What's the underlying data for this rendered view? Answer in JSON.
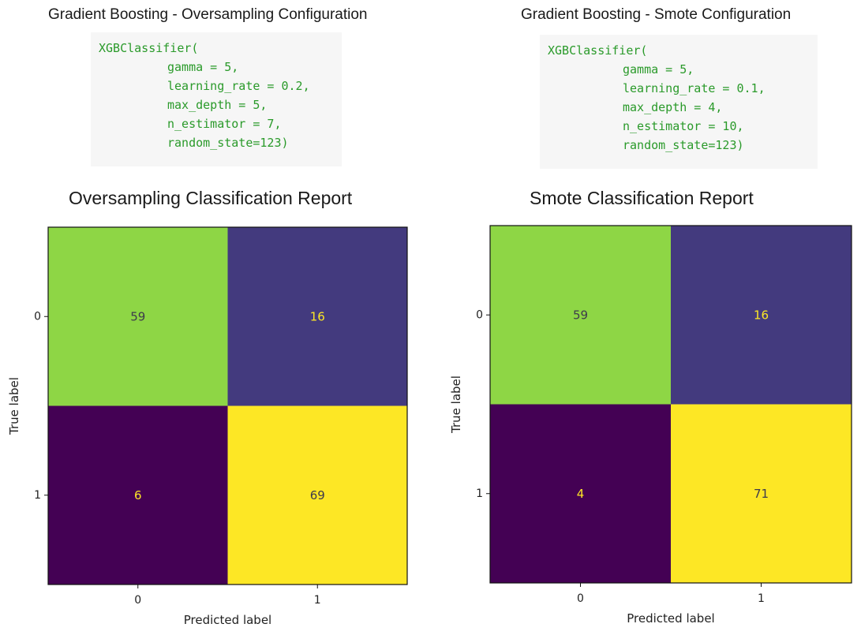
{
  "colors": {
    "tl": "#8ed645",
    "tr": "#433a7e",
    "bl": "#440154",
    "br": "#fde725",
    "text_on_dark": "#fde725",
    "text_on_light": "#3d3a4c",
    "code_green": "#2a9a2a"
  },
  "panels": [
    {
      "config_title": "Gradient Boosting - Oversampling Configuration",
      "code_lines": [
        "XGBClassifier(",
        "gamma = 5,",
        "learning_rate = 0.2,",
        "max_depth = 5,",
        "n_estimator = 7,",
        "random_state=123)"
      ],
      "report_title": "Oversampling Classification Report"
    },
    {
      "config_title": "Gradient Boosting - Smote Configuration",
      "code_lines": [
        "XGBClassifier(",
        "gamma = 5,",
        "learning_rate = 0.1,",
        "max_depth = 4,",
        "n_estimator = 10,",
        "random_state=123)"
      ],
      "report_title": "Smote Classification Report"
    }
  ],
  "chart_data": [
    {
      "type": "heatmap",
      "title": "Oversampling Classification Report",
      "xlabel": "Predicted label",
      "ylabel": "True label",
      "x_categories": [
        "0",
        "1"
      ],
      "y_categories": [
        "0",
        "1"
      ],
      "values": [
        [
          59,
          16
        ],
        [
          6,
          69
        ]
      ]
    },
    {
      "type": "heatmap",
      "title": "Smote Classification Report",
      "xlabel": "Predicted label",
      "ylabel": "True label",
      "x_categories": [
        "0",
        "1"
      ],
      "y_categories": [
        "0",
        "1"
      ],
      "values": [
        [
          59,
          16
        ],
        [
          4,
          71
        ]
      ]
    }
  ]
}
